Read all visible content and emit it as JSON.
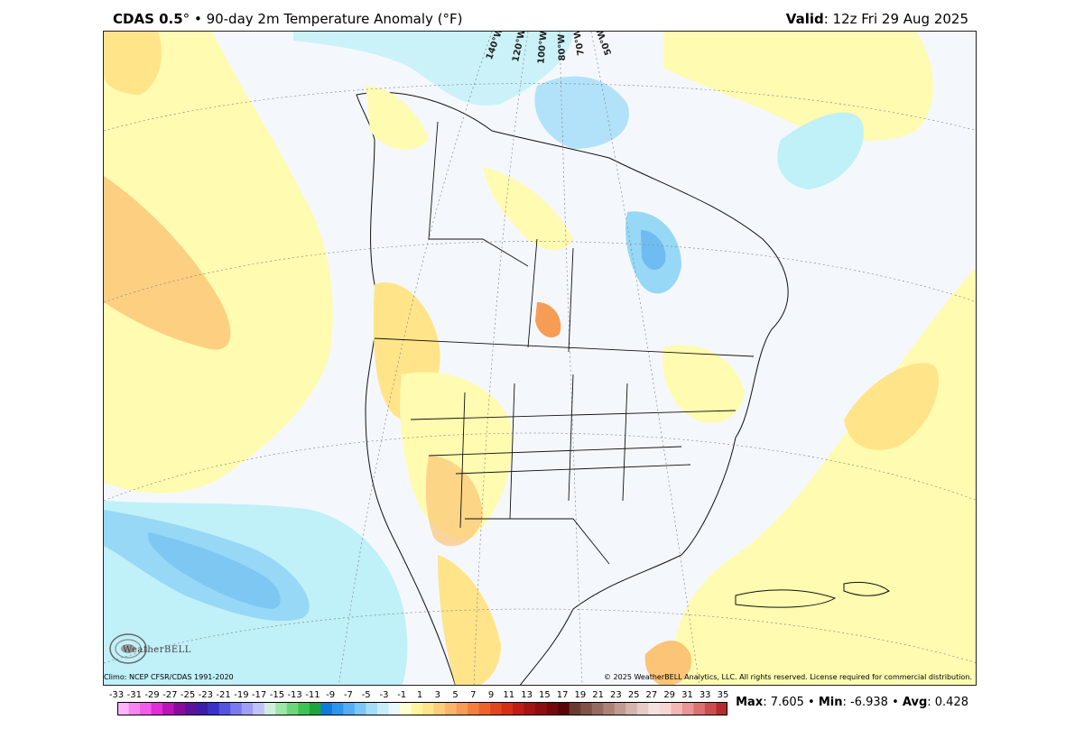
{
  "header": {
    "model": "CDAS 0.5",
    "degree": "°",
    "separator": " • ",
    "title": "90-day 2m Temperature Anomaly (°F)",
    "valid_label": "Valid",
    "valid_value": ": 12z Fri 29 Aug 2025"
  },
  "map": {
    "lon_labels": [
      "140°W",
      "120°W",
      "100°W",
      "80°W",
      "70°W",
      "50°W"
    ],
    "colors": {
      "ocean_neutral": "#f4f8fd",
      "warm_1": "#fffbb0",
      "warm_2": "#ffe48a",
      "warm_3": "#fcc476",
      "warm_4": "#f79c55",
      "cool_1": "#c0f0f8",
      "cool_2": "#96d8f6",
      "cool_3": "#6fbcf2",
      "cool_4": "#4c94e6"
    }
  },
  "footer": {
    "climo": "Climo: NCEP CFSR/CDAS 1991-2020",
    "copyright": "© 2025 WeatherBELL Analytics, LLC. All rights reserved. License required for commercial distribution.",
    "logo_text": "WeatherBELL"
  },
  "colorbar": {
    "ticks": [
      "-33",
      "-31",
      "-29",
      "-27",
      "-25",
      "-23",
      "-21",
      "-19",
      "-17",
      "-15",
      "-13",
      "-11",
      "-9",
      "-7",
      "-5",
      "-3",
      "-1",
      "1",
      "3",
      "5",
      "7",
      "9",
      "11",
      "13",
      "15",
      "17",
      "19",
      "21",
      "23",
      "25",
      "27",
      "29",
      "31",
      "33",
      "35"
    ],
    "colors": [
      "#fdb4fb",
      "#f985f1",
      "#f25ce9",
      "#e02fd7",
      "#b814b8",
      "#8a0a9c",
      "#5c139a",
      "#3d1ea8",
      "#3a32c8",
      "#5454e0",
      "#7a7af0",
      "#9f9ff5",
      "#c2c2fa",
      "#cfeede",
      "#9fe6a6",
      "#6ed67a",
      "#3cc455",
      "#1ea53a",
      "#0f7bd8",
      "#2d95ec",
      "#55aef3",
      "#7cc6f7",
      "#a4dcfa",
      "#c8ecfc",
      "#e6f7fe",
      "#ffffd6",
      "#fff5a0",
      "#ffe48a",
      "#fccd7a",
      "#f9b569",
      "#f79c55",
      "#f47f3f",
      "#ee622e",
      "#e2461e",
      "#d33016",
      "#be1e14",
      "#a41414",
      "#8c0e0e",
      "#740a0a",
      "#5a0606",
      "#6a3c30",
      "#805248",
      "#966a60",
      "#ac8278",
      "#c29a92",
      "#d6b4ae",
      "#e6ccc8",
      "#f4e2e0",
      "#f8d6d4",
      "#f2b8b6",
      "#e99694",
      "#dc7270",
      "#cc4e4e",
      "#b42c30"
    ]
  },
  "stats": {
    "max_label": "Max",
    "max_value": ": 7.605",
    "min_label": "Min",
    "min_value": ": -6.938",
    "avg_label": "Avg",
    "avg_value": ": 0.428",
    "sep": " • "
  }
}
